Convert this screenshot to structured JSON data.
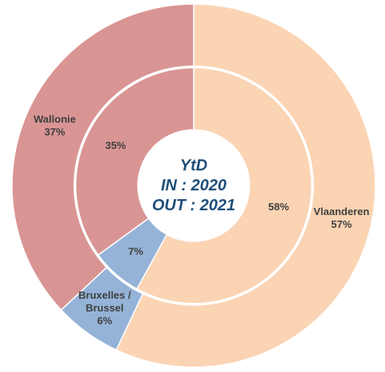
{
  "chart_data": {
    "type": "donut",
    "center_text": [
      "YtD",
      "IN : 2020",
      "OUT : 2021"
    ],
    "categories": [
      "Vlaanderen",
      "Bruxelles / Brussel",
      "Wallonie"
    ],
    "colors": [
      "#fbd4b4",
      "#95b3d7",
      "#d99594"
    ],
    "rings": [
      {
        "values": [
          58,
          7,
          35
        ],
        "value_labels": [
          "58%",
          "7%",
          "35%"
        ]
      },
      {
        "values": [
          57,
          6,
          37
        ],
        "value_labels": [
          "57%",
          "6%",
          "37%"
        ]
      }
    ]
  }
}
